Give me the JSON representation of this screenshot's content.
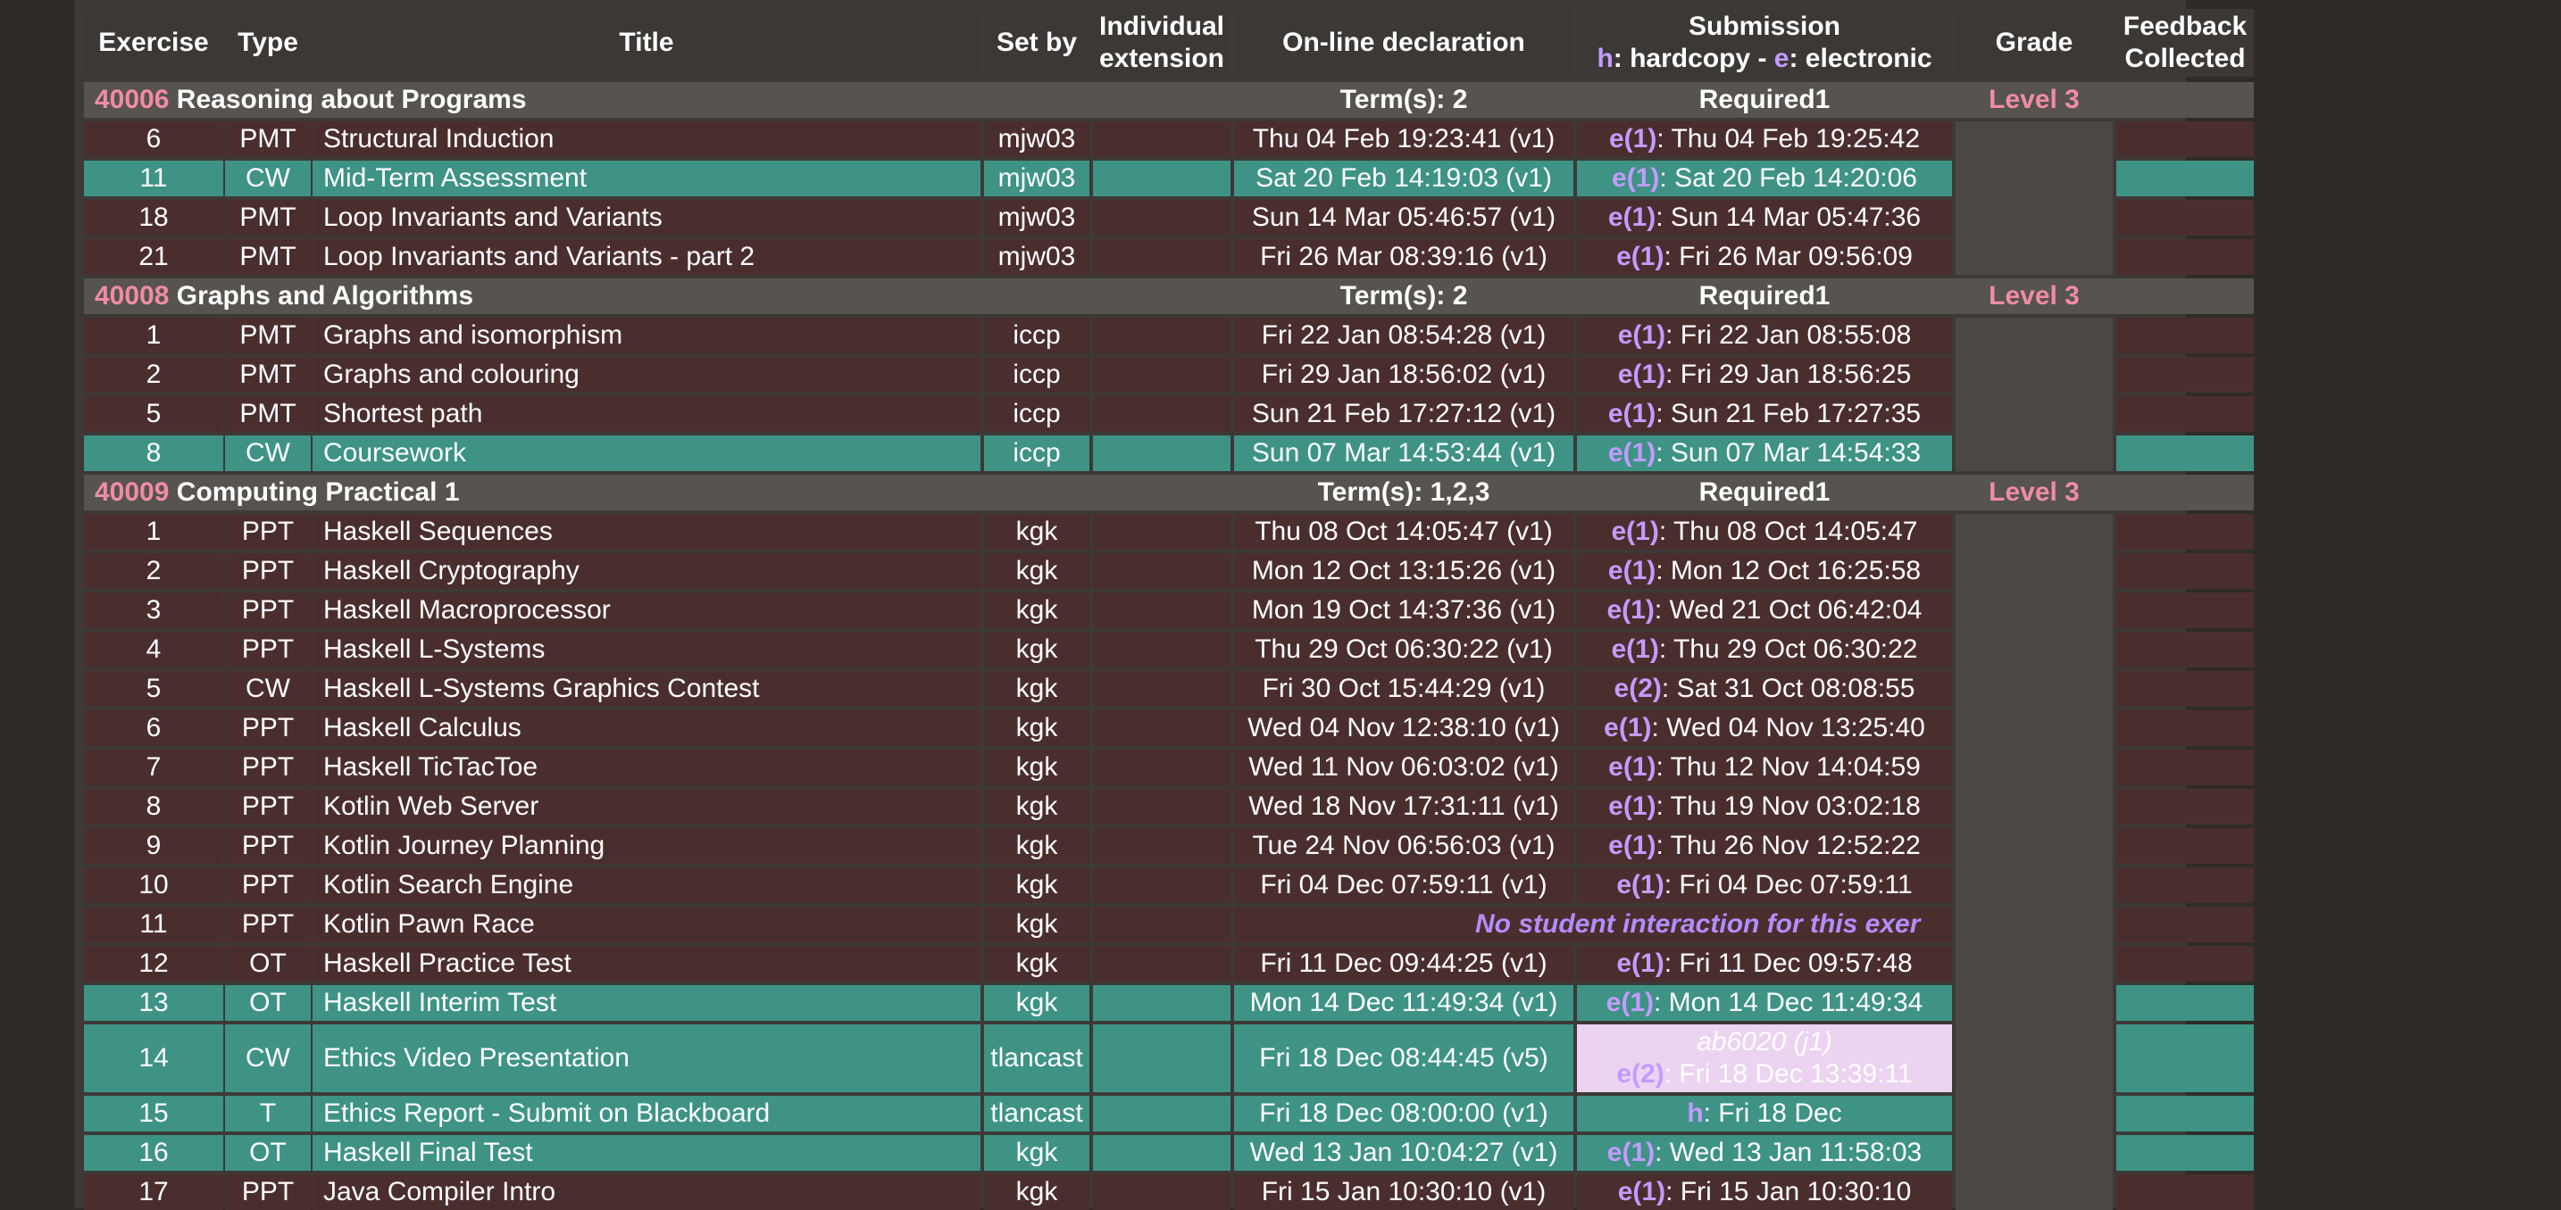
{
  "headers": {
    "exercise": "Exercise",
    "type": "Type",
    "title": "Title",
    "setby": "Set by",
    "individual": "Individual extension",
    "online": "On-line declaration",
    "submission_title": "Submission",
    "submission_h": "h",
    "submission_hardcopy": ": hardcopy - ",
    "submission_e": "e",
    "submission_electronic": ": electronic",
    "grade": "Grade",
    "feedback": "Feedback Collected"
  },
  "modules": [
    {
      "code": "40006",
      "name": "Reasoning about Programs",
      "terms": "Term(s): 2",
      "required": "Required1",
      "level": "Level 3",
      "rows": [
        {
          "ex": "6",
          "type": "PMT",
          "title": "Structural Induction",
          "setby": "mjw03",
          "online": "Thu 04 Feb 19:23:41 (v1)",
          "code": "e(1)",
          "sub": ": Thu 04 Feb 19:25:42",
          "style": "dark"
        },
        {
          "ex": "11",
          "type": "CW",
          "title": "Mid-Term Assessment",
          "setby": "mjw03",
          "online": "Sat 20 Feb 14:19:03 (v1)",
          "code": "e(1)",
          "sub": ": Sat 20 Feb 14:20:06",
          "style": "teal"
        },
        {
          "ex": "18",
          "type": "PMT",
          "title": "Loop Invariants and Variants",
          "setby": "mjw03",
          "online": "Sun 14 Mar 05:46:57 (v1)",
          "code": "e(1)",
          "sub": ": Sun 14 Mar 05:47:36",
          "style": "dark"
        },
        {
          "ex": "21",
          "type": "PMT",
          "title": "Loop Invariants and Variants - part 2",
          "setby": "mjw03",
          "online": "Fri 26 Mar 08:39:16 (v1)",
          "code": "e(1)",
          "sub": ": Fri 26 Mar 09:56:09",
          "style": "dark"
        }
      ]
    },
    {
      "code": "40008",
      "name": "Graphs and Algorithms",
      "terms": "Term(s): 2",
      "required": "Required1",
      "level": "Level 3",
      "rows": [
        {
          "ex": "1",
          "type": "PMT",
          "title": "Graphs and isomorphism",
          "setby": "iccp",
          "online": "Fri 22 Jan 08:54:28 (v1)",
          "code": "e(1)",
          "sub": ": Fri 22 Jan 08:55:08",
          "style": "dark"
        },
        {
          "ex": "2",
          "type": "PMT",
          "title": "Graphs and colouring",
          "setby": "iccp",
          "online": "Fri 29 Jan 18:56:02 (v1)",
          "code": "e(1)",
          "sub": ": Fri 29 Jan 18:56:25",
          "style": "dark"
        },
        {
          "ex": "5",
          "type": "PMT",
          "title": "Shortest path",
          "setby": "iccp",
          "online": "Sun 21 Feb 17:27:12 (v1)",
          "code": "e(1)",
          "sub": ": Sun 21 Feb 17:27:35",
          "style": "dark"
        },
        {
          "ex": "8",
          "type": "CW",
          "title": "Coursework",
          "setby": "iccp",
          "online": "Sun 07 Mar 14:53:44 (v1)",
          "code": "e(1)",
          "sub": ": Sun 07 Mar 14:54:33",
          "style": "teal"
        }
      ]
    },
    {
      "code": "40009",
      "name": "Computing Practical 1",
      "terms": "Term(s): 1,2,3",
      "required": "Required1",
      "level": "Level 3",
      "rows": [
        {
          "ex": "1",
          "type": "PPT",
          "title": "Haskell Sequences",
          "setby": "kgk",
          "online": "Thu 08 Oct 14:05:47 (v1)",
          "code": "e(1)",
          "sub": ": Thu 08 Oct 14:05:47",
          "style": "dark"
        },
        {
          "ex": "2",
          "type": "PPT",
          "title": "Haskell Cryptography",
          "setby": "kgk",
          "online": "Mon 12 Oct 13:15:26 (v1)",
          "code": "e(1)",
          "sub": ": Mon 12 Oct 16:25:58",
          "style": "dark"
        },
        {
          "ex": "3",
          "type": "PPT",
          "title": "Haskell Macroprocessor",
          "setby": "kgk",
          "online": "Mon 19 Oct 14:37:36 (v1)",
          "code": "e(1)",
          "sub": ": Wed 21 Oct 06:42:04",
          "style": "dark"
        },
        {
          "ex": "4",
          "type": "PPT",
          "title": "Haskell L-Systems",
          "setby": "kgk",
          "online": "Thu 29 Oct 06:30:22 (v1)",
          "code": "e(1)",
          "sub": ": Thu 29 Oct 06:30:22",
          "style": "dark"
        },
        {
          "ex": "5",
          "type": "CW",
          "title": "Haskell L-Systems Graphics Contest",
          "setby": "kgk",
          "online": "Fri 30 Oct 15:44:29 (v1)",
          "code": "e(2)",
          "sub": ": Sat 31 Oct 08:08:55",
          "style": "dark"
        },
        {
          "ex": "6",
          "type": "PPT",
          "title": "Haskell Calculus",
          "setby": "kgk",
          "online": "Wed 04 Nov 12:38:10 (v1)",
          "code": "e(1)",
          "sub": ": Wed 04 Nov 13:25:40",
          "style": "dark"
        },
        {
          "ex": "7",
          "type": "PPT",
          "title": "Haskell TicTacToe",
          "setby": "kgk",
          "online": "Wed 11 Nov 06:03:02 (v1)",
          "code": "e(1)",
          "sub": ": Thu 12 Nov 14:04:59",
          "style": "dark"
        },
        {
          "ex": "8",
          "type": "PPT",
          "title": "Kotlin Web Server",
          "setby": "kgk",
          "online": "Wed 18 Nov 17:31:11 (v1)",
          "code": "e(1)",
          "sub": ": Thu 19 Nov 03:02:18",
          "style": "dark"
        },
        {
          "ex": "9",
          "type": "PPT",
          "title": "Kotlin Journey Planning",
          "setby": "kgk",
          "online": "Tue 24 Nov 06:56:03 (v1)",
          "code": "e(1)",
          "sub": ": Thu 26 Nov 12:52:22",
          "style": "dark"
        },
        {
          "ex": "10",
          "type": "PPT",
          "title": "Kotlin Search Engine",
          "setby": "kgk",
          "online": "Fri 04 Dec 07:59:11 (v1)",
          "code": "e(1)",
          "sub": ": Fri 04 Dec 07:59:11",
          "style": "dark"
        },
        {
          "ex": "11",
          "type": "PPT",
          "title": "Kotlin Pawn Race",
          "setby": "kgk",
          "nointer": "No student interaction for this exer",
          "style": "dark"
        },
        {
          "ex": "12",
          "type": "OT",
          "title": "Haskell Practice Test",
          "setby": "kgk",
          "online": "Fri 11 Dec 09:44:25 (v1)",
          "code": "e(1)",
          "sub": ": Fri 11 Dec 09:57:48",
          "style": "dark"
        },
        {
          "ex": "13",
          "type": "OT",
          "title": "Haskell Interim Test",
          "setby": "kgk",
          "online": "Mon 14 Dec 11:49:34 (v1)",
          "code": "e(1)",
          "sub": ": Mon 14 Dec 11:49:34",
          "style": "teal"
        },
        {
          "ex": "14",
          "type": "CW",
          "title": "Ethics Video Presentation",
          "setby": "tlancast",
          "online": "Fri 18 Dec 08:44:45 (v5)",
          "code": "e(2)",
          "sub": ": Fri 18 Dec 13:39:11",
          "group": "ab6020 (j1)",
          "style": "teal",
          "tall": true
        },
        {
          "ex": "15",
          "type": "T",
          "title": "Ethics Report - Submit on Blackboard",
          "setby": "tlancast",
          "online": "Fri 18 Dec 08:00:00 (v1)",
          "code": "h",
          "sub": ": Fri 18 Dec",
          "style": "teal"
        },
        {
          "ex": "16",
          "type": "OT",
          "title": "Haskell Final Test",
          "setby": "kgk",
          "online": "Wed 13 Jan 10:04:27 (v1)",
          "code": "e(1)",
          "sub": ": Wed 13 Jan 11:58:03",
          "style": "teal"
        },
        {
          "ex": "17",
          "type": "PPT",
          "title": "Java Compiler Intro",
          "setby": "kgk",
          "online": "Fri 15 Jan 10:30:10 (v1)",
          "code": "e(1)",
          "sub": ": Fri 15 Jan 10:30:10",
          "style": "dark"
        }
      ]
    }
  ]
}
